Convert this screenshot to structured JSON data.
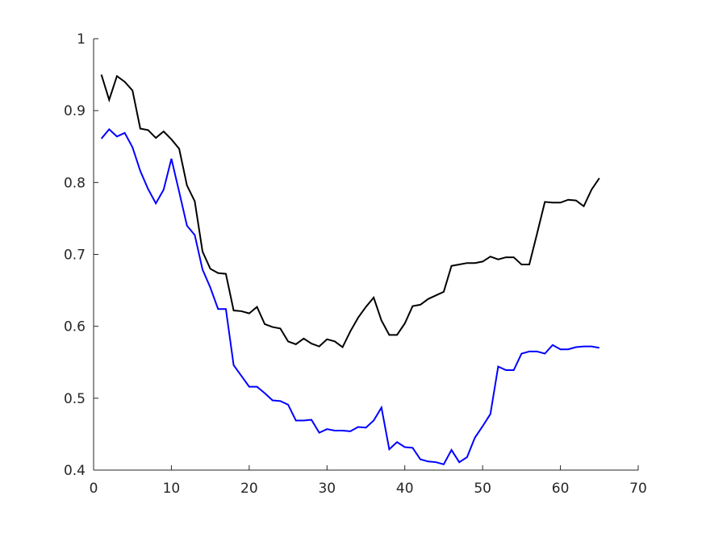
{
  "chart_data": {
    "type": "line",
    "title": "",
    "xlabel": "",
    "ylabel": "",
    "xlim": [
      0,
      70
    ],
    "ylim": [
      0.4,
      1.0
    ],
    "xticks": [
      0,
      10,
      20,
      30,
      40,
      50,
      60,
      70
    ],
    "yticks": [
      0.4,
      0.5,
      0.6,
      0.7,
      0.8,
      0.9,
      1.0
    ],
    "xtick_labels": [
      "0",
      "10",
      "20",
      "30",
      "40",
      "50",
      "60",
      "70"
    ],
    "ytick_labels": [
      "0.4",
      "0.5",
      "0.6",
      "0.7",
      "0.8",
      "0.9",
      "1"
    ],
    "grid": false,
    "legend": "none",
    "x": [
      1,
      2,
      3,
      4,
      5,
      6,
      7,
      8,
      9,
      10,
      11,
      12,
      13,
      14,
      15,
      16,
      17,
      18,
      19,
      20,
      21,
      22,
      23,
      24,
      25,
      26,
      27,
      28,
      29,
      30,
      31,
      32,
      33,
      34,
      35,
      36,
      37,
      38,
      39,
      40,
      41,
      42,
      43,
      44,
      45,
      46,
      47,
      48,
      49,
      50,
      51,
      52,
      53,
      54,
      55,
      56,
      57,
      58,
      59,
      60,
      61,
      62,
      63,
      64,
      65
    ],
    "series": [
      {
        "color": "#000000",
        "values": [
          0.95,
          0.915,
          0.948,
          0.94,
          0.928,
          0.875,
          0.873,
          0.862,
          0.871,
          0.86,
          0.847,
          0.796,
          0.774,
          0.704,
          0.68,
          0.674,
          0.673,
          0.622,
          0.621,
          0.618,
          0.627,
          0.603,
          0.599,
          0.597,
          0.579,
          0.575,
          0.583,
          0.576,
          0.572,
          0.582,
          0.579,
          0.571,
          0.593,
          0.612,
          0.627,
          0.64,
          0.608,
          0.588,
          0.588,
          0.604,
          0.628,
          0.63,
          0.638,
          0.643,
          0.648,
          0.684,
          0.686,
          0.688,
          0.688,
          0.69,
          0.697,
          0.693,
          0.696,
          0.696,
          0.686,
          0.686,
          0.729,
          0.773,
          0.772,
          0.772,
          0.776,
          0.775,
          0.767,
          0.79,
          0.806
        ]
      },
      {
        "color": "#0000ff",
        "values": [
          0.861,
          0.874,
          0.864,
          0.869,
          0.849,
          0.816,
          0.791,
          0.771,
          0.79,
          0.833,
          0.787,
          0.74,
          0.727,
          0.679,
          0.654,
          0.624,
          0.624,
          0.546,
          0.531,
          0.516,
          0.516,
          0.507,
          0.497,
          0.496,
          0.491,
          0.469,
          0.469,
          0.47,
          0.452,
          0.457,
          0.455,
          0.455,
          0.454,
          0.46,
          0.459,
          0.469,
          0.487,
          0.429,
          0.439,
          0.432,
          0.431,
          0.415,
          0.412,
          0.411,
          0.408,
          0.428,
          0.411,
          0.418,
          0.445,
          0.461,
          0.478,
          0.544,
          0.539,
          0.539,
          0.562,
          0.565,
          0.565,
          0.562,
          0.574,
          0.568,
          0.568,
          0.571,
          0.572,
          0.572,
          0.57
        ]
      }
    ]
  }
}
